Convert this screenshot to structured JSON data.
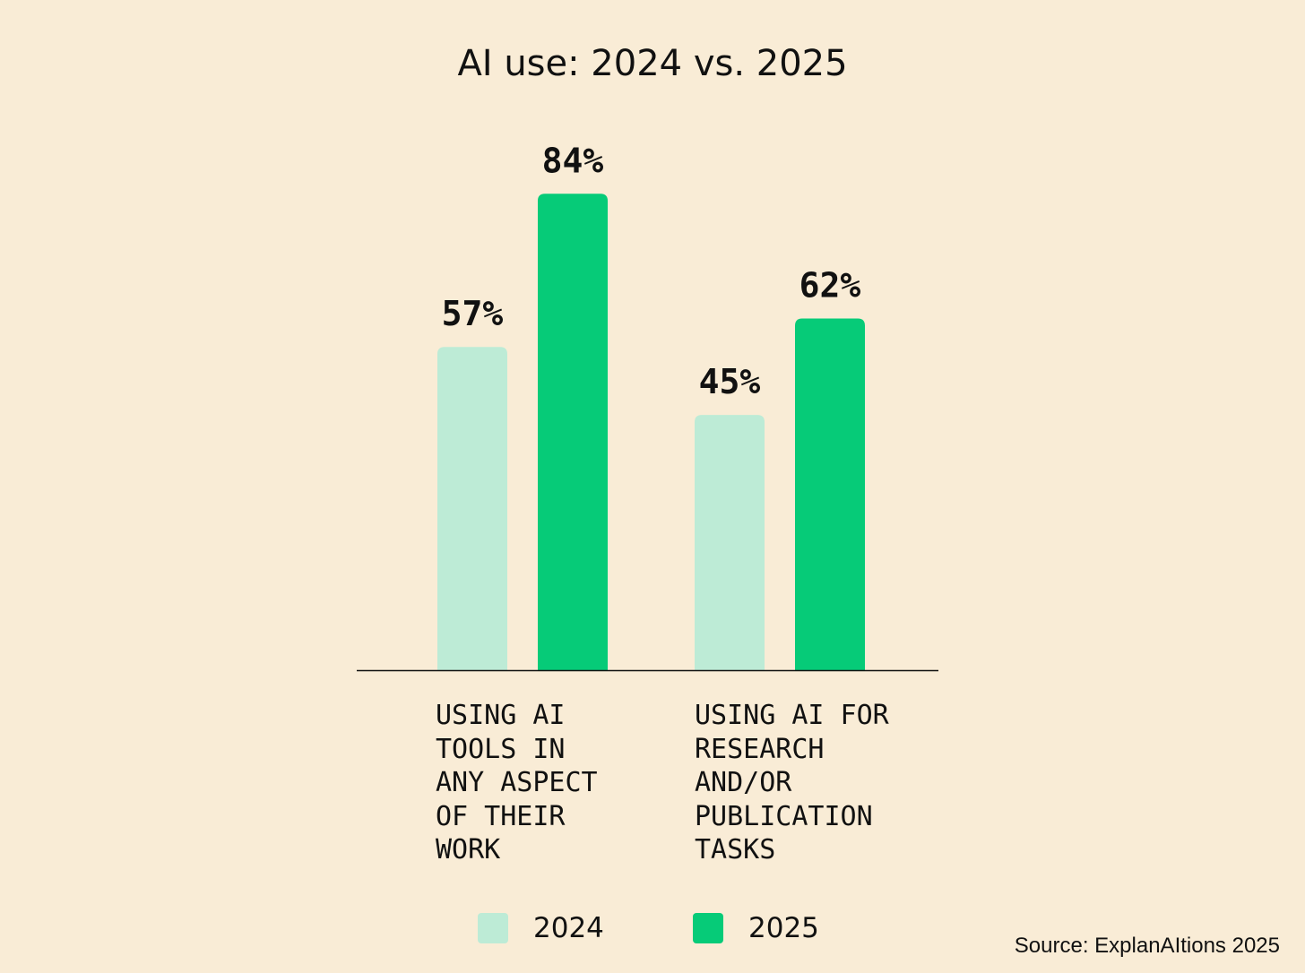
{
  "chart_data": {
    "type": "bar",
    "title": "AI use: 2024 vs. 2025",
    "categories": [
      [
        "USING AI",
        "TOOLS IN",
        "ANY ASPECT",
        "OF THEIR",
        "WORK"
      ],
      [
        "USING AI FOR",
        "RESEARCH",
        "AND/OR",
        "PUBLICATION",
        "TASKS"
      ]
    ],
    "series": [
      {
        "name": "2024",
        "color": "#bdebd6",
        "values": [
          57,
          45
        ],
        "labels": [
          "57%",
          "45%"
        ]
      },
      {
        "name": "2025",
        "color": "#06cb78",
        "values": [
          84,
          62
        ],
        "labels": [
          "84%",
          "62%"
        ]
      }
    ],
    "ylim": [
      0,
      100
    ],
    "grid": false,
    "legend": "bottom-center",
    "source": "Source: ExplanAItions 2025"
  }
}
